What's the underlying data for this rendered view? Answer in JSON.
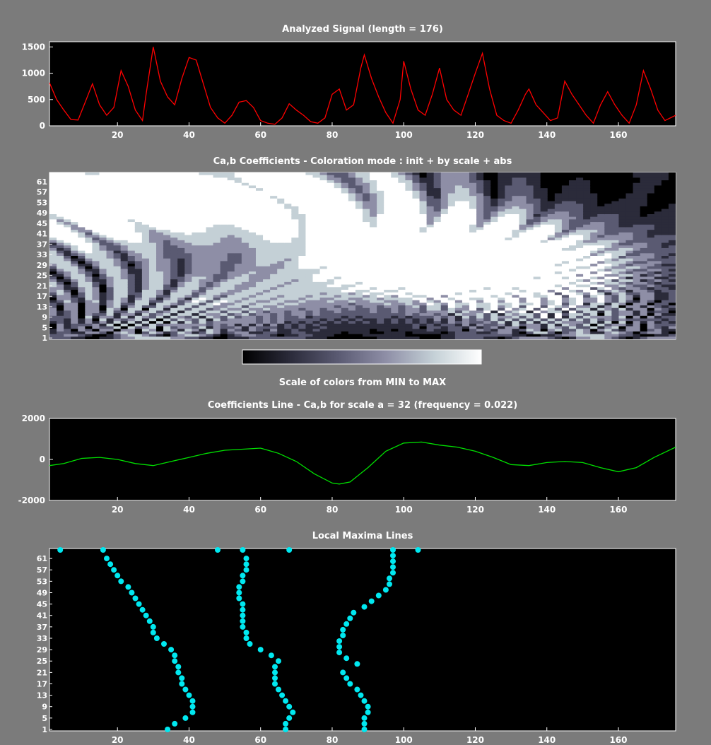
{
  "window": {
    "background": "#7b7b7b"
  },
  "colors": {
    "signal": "#ff0000",
    "coef_line": "#00e000",
    "maxima": "#00e8f0",
    "axes_bg": "#000000",
    "axes_fg": "#ffffff"
  },
  "chart_data": [
    {
      "type": "line",
      "title": "Analyzed Signal  (length = 176)",
      "xlim": [
        1,
        176
      ],
      "ylim": [
        0,
        1600
      ],
      "xticks": [
        20,
        40,
        60,
        80,
        100,
        120,
        140,
        160
      ],
      "yticks": [
        0,
        500,
        1000,
        1500
      ],
      "series": [
        {
          "color": "#ff0000",
          "x": [
            1,
            3,
            5,
            7,
            9,
            11,
            13,
            15,
            17,
            19,
            21,
            23,
            25,
            27,
            28,
            30,
            32,
            34,
            36,
            38,
            40,
            42,
            44,
            46,
            48,
            50,
            52,
            54,
            56,
            58,
            60,
            62,
            64,
            66,
            68,
            70,
            72,
            74,
            76,
            78,
            80,
            82,
            84,
            86,
            88,
            89,
            91,
            93,
            95,
            97,
            99,
            100,
            102,
            104,
            106,
            108,
            110,
            112,
            114,
            116,
            118,
            120,
            122,
            124,
            126,
            128,
            130,
            132,
            134,
            135,
            137,
            139,
            141,
            143,
            145,
            147,
            149,
            151,
            153,
            155,
            157,
            159,
            161,
            163,
            165,
            167,
            169,
            171,
            173,
            176
          ],
          "y": [
            820,
            500,
            300,
            120,
            110,
            450,
            800,
            400,
            200,
            350,
            1050,
            750,
            300,
            100,
            600,
            1500,
            850,
            550,
            400,
            900,
            1300,
            1250,
            800,
            350,
            150,
            50,
            200,
            450,
            480,
            350,
            100,
            50,
            30,
            150,
            420,
            300,
            200,
            80,
            50,
            150,
            600,
            700,
            300,
            400,
            1100,
            1350,
            900,
            550,
            250,
            50,
            500,
            1230,
            700,
            300,
            200,
            600,
            1100,
            500,
            300,
            200,
            600,
            1000,
            1380,
            700,
            200,
            100,
            50,
            300,
            600,
            700,
            400,
            250,
            100,
            150,
            850,
            600,
            400,
            200,
            50,
            400,
            650,
            400,
            200,
            50,
            400,
            1050,
            700,
            300,
            100,
            200
          ]
        }
      ]
    },
    {
      "type": "heatmap",
      "title": "Ca,b Coefficients  - Coloration mode : init + by scale + abs",
      "xlim": [
        1,
        176
      ],
      "ylabels": [
        "1",
        "5",
        "9",
        "13",
        "17",
        "21",
        "25",
        "29",
        "33",
        "37",
        "41",
        "45",
        "49",
        "53",
        "57",
        "61"
      ],
      "colormap": [
        "#000000",
        "#2b2b3a",
        "#5a5a72",
        "#8e8ea6",
        "#c4d0d6",
        "#ffffff"
      ],
      "colorbar_label": "Scale of colors from MIN to MAX"
    },
    {
      "type": "line",
      "title": "Coefficients Line - Ca,b   for scale a = 32  (frequency =   0.022)",
      "xlim": [
        1,
        176
      ],
      "ylim": [
        -2000,
        2000
      ],
      "xticks": [
        20,
        40,
        60,
        80,
        100,
        120,
        140,
        160
      ],
      "yticks": [
        -2000,
        0,
        2000
      ],
      "series": [
        {
          "color": "#00e000",
          "x": [
            1,
            5,
            10,
            15,
            20,
            25,
            30,
            35,
            40,
            45,
            50,
            55,
            60,
            65,
            70,
            75,
            80,
            82,
            85,
            90,
            95,
            100,
            105,
            110,
            115,
            120,
            125,
            130,
            135,
            140,
            145,
            150,
            155,
            160,
            165,
            170,
            176
          ],
          "y": [
            -300,
            -200,
            50,
            100,
            0,
            -200,
            -300,
            -100,
            100,
            300,
            450,
            500,
            550,
            300,
            -100,
            -700,
            -1150,
            -1200,
            -1100,
            -400,
            400,
            800,
            850,
            700,
            600,
            400,
            100,
            -250,
            -300,
            -150,
            -100,
            -150,
            -400,
            -600,
            -400,
            100,
            600
          ]
        }
      ]
    },
    {
      "type": "scatter",
      "title": "Local Maxima Lines",
      "xlim": [
        1,
        176
      ],
      "ylim": [
        1,
        64
      ],
      "xticks": [
        20,
        40,
        60,
        80,
        100,
        120,
        140,
        160
      ],
      "ylabels": [
        "1",
        "5",
        "9",
        "13",
        "17",
        "21",
        "25",
        "29",
        "33",
        "37",
        "41",
        "45",
        "49",
        "53",
        "57",
        "61"
      ],
      "series": [
        {
          "points": [
            [
              34,
              1
            ],
            [
              36,
              3
            ],
            [
              39,
              5
            ],
            [
              41,
              7
            ],
            [
              41,
              9
            ],
            [
              41,
              11
            ],
            [
              40,
              13
            ],
            [
              39,
              15
            ],
            [
              38,
              17
            ],
            [
              38,
              19
            ],
            [
              37,
              21
            ],
            [
              37,
              23
            ],
            [
              36,
              25
            ],
            [
              36,
              27
            ],
            [
              35,
              29
            ],
            [
              33,
              31
            ],
            [
              31,
              33
            ],
            [
              30,
              35
            ],
            [
              30,
              37
            ],
            [
              29,
              39
            ],
            [
              28,
              41
            ],
            [
              27,
              43
            ],
            [
              26,
              45
            ],
            [
              25,
              47
            ],
            [
              24,
              49
            ],
            [
              23,
              51
            ],
            [
              21,
              53
            ],
            [
              20,
              55
            ],
            [
              19,
              57
            ],
            [
              18,
              59
            ],
            [
              17,
              61
            ],
            [
              16,
              64
            ]
          ]
        },
        {
          "points": [
            [
              67,
              1
            ],
            [
              67,
              3
            ],
            [
              68,
              5
            ],
            [
              69,
              7
            ],
            [
              68,
              9
            ],
            [
              67,
              11
            ],
            [
              66,
              13
            ],
            [
              65,
              15
            ],
            [
              64,
              17
            ],
            [
              64,
              19
            ],
            [
              64,
              21
            ],
            [
              64,
              23
            ],
            [
              65,
              25
            ],
            [
              63,
              27
            ],
            [
              60,
              29
            ],
            [
              57,
              31
            ],
            [
              56,
              33
            ],
            [
              56,
              35
            ],
            [
              55,
              37
            ],
            [
              55,
              39
            ],
            [
              55,
              41
            ],
            [
              55,
              43
            ],
            [
              55,
              45
            ],
            [
              54,
              47
            ],
            [
              54,
              49
            ],
            [
              54,
              51
            ],
            [
              55,
              53
            ],
            [
              55,
              55
            ],
            [
              56,
              57
            ],
            [
              56,
              59
            ],
            [
              56,
              61
            ],
            [
              55,
              64
            ]
          ]
        },
        {
          "points": [
            [
              89,
              1
            ],
            [
              89,
              3
            ],
            [
              89,
              5
            ],
            [
              90,
              7
            ],
            [
              90,
              9
            ],
            [
              89,
              11
            ],
            [
              88,
              13
            ],
            [
              87,
              15
            ],
            [
              85,
              17
            ],
            [
              84,
              19
            ],
            [
              83,
              21
            ],
            [
              87,
              24
            ],
            [
              84,
              26
            ],
            [
              82,
              28
            ],
            [
              82,
              30
            ],
            [
              82,
              32
            ],
            [
              83,
              34
            ],
            [
              83,
              36
            ],
            [
              84,
              38
            ],
            [
              85,
              40
            ],
            [
              86,
              42
            ],
            [
              89,
              44
            ],
            [
              91,
              46
            ],
            [
              93,
              48
            ],
            [
              95,
              50
            ],
            [
              96,
              52
            ],
            [
              96,
              54
            ],
            [
              97,
              56
            ],
            [
              97,
              58
            ],
            [
              97,
              60
            ],
            [
              97,
              62
            ],
            [
              97,
              64
            ]
          ]
        },
        {
          "points": [
            [
              4,
              64
            ],
            [
              48,
              64
            ],
            [
              68,
              64
            ],
            [
              104,
              64
            ]
          ]
        }
      ]
    }
  ]
}
